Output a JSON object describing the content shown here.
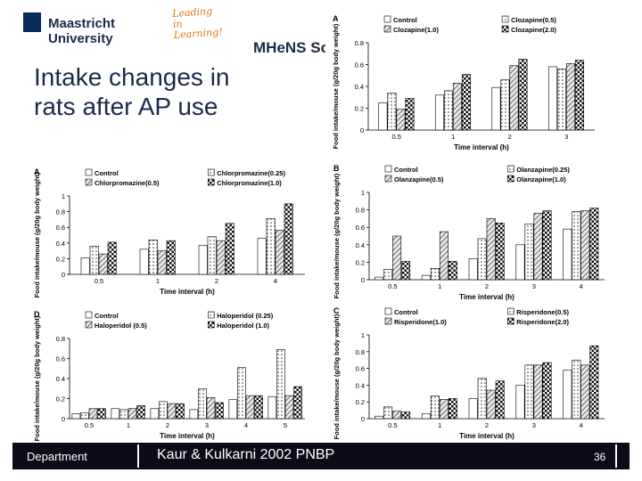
{
  "header": {
    "university": "Maastricht University",
    "tagline_line1": "Leading",
    "tagline_line2": "in Learning!",
    "school": "MHeNS School"
  },
  "title": {
    "line1": "Intake changes in",
    "line2": "rats after AP use"
  },
  "footer": {
    "department": "Department",
    "citation": "Kaur & Kulkarni 2002 PNBP",
    "page": "36"
  },
  "chart_data": [
    {
      "type": "bar",
      "panel_label": "A",
      "ylabel": "Food intake/mouse (g/20g body weight)",
      "xlabel": "Time interval (h)",
      "ylim": [
        0,
        0.8
      ],
      "yticks": [
        0,
        0.2,
        0.4,
        0.6,
        0.8
      ],
      "categories": [
        "0.5",
        "1",
        "2",
        "3"
      ],
      "series": [
        {
          "name": "Control",
          "values": [
            0.25,
            0.32,
            0.39,
            0.58
          ]
        },
        {
          "name": "Clozapine(0.5)",
          "values": [
            0.34,
            0.36,
            0.46,
            0.56
          ]
        },
        {
          "name": "Clozapine(1.0)",
          "values": [
            0.19,
            0.43,
            0.59,
            0.61
          ]
        },
        {
          "name": "Clozapine(2.0)",
          "values": [
            0.29,
            0.51,
            0.65,
            0.64
          ]
        }
      ]
    },
    {
      "type": "bar",
      "panel_label": "A",
      "ylabel": "Food intake/mouse (g/20g body weight)",
      "xlabel": "Time interval (h)",
      "ylim": [
        0,
        1
      ],
      "yticks": [
        0,
        0.2,
        0.4,
        0.6,
        0.8,
        1
      ],
      "categories": [
        "0.5",
        "1",
        "2",
        "4"
      ],
      "series": [
        {
          "name": "Control",
          "values": [
            0.21,
            0.32,
            0.37,
            0.46
          ]
        },
        {
          "name": "Chlorpromazine(0.25)",
          "values": [
            0.36,
            0.44,
            0.48,
            0.71
          ]
        },
        {
          "name": "Chlorpromazine(0.5)",
          "values": [
            0.26,
            0.3,
            0.43,
            0.56
          ]
        },
        {
          "name": "Chlorpromazine(1.0)",
          "values": [
            0.41,
            0.43,
            0.65,
            0.9
          ]
        }
      ]
    },
    {
      "type": "bar",
      "panel_label": "B",
      "ylabel": "Food intake/mouse (g/20g body weight)",
      "xlabel": "Time interval (h)",
      "ylim": [
        0,
        1
      ],
      "yticks": [
        0,
        0.2,
        0.4,
        0.6,
        0.8,
        1
      ],
      "categories": [
        "0.5",
        "1",
        "2",
        "3",
        "4"
      ],
      "series": [
        {
          "name": "Control",
          "values": [
            0.03,
            0.05,
            0.24,
            0.4,
            0.58
          ]
        },
        {
          "name": "Olanzapine(0.25)",
          "values": [
            0.12,
            0.13,
            0.47,
            0.64,
            0.78
          ]
        },
        {
          "name": "Olanzapine(0.5)",
          "values": [
            0.5,
            0.55,
            0.7,
            0.76,
            0.79
          ]
        },
        {
          "name": "Olanzapine(1.0)",
          "values": [
            0.21,
            0.21,
            0.65,
            0.79,
            0.82
          ]
        }
      ]
    },
    {
      "type": "bar",
      "panel_label": "D",
      "ylabel": "Food intake/mouse (g/20g body weight)",
      "xlabel": "Time interval (h)",
      "ylim": [
        0,
        0.8
      ],
      "yticks": [
        0,
        0.2,
        0.4,
        0.6,
        0.8
      ],
      "categories": [
        "0.5",
        "1",
        "2",
        "3",
        "4",
        "5"
      ],
      "series": [
        {
          "name": "Control",
          "values": [
            0.05,
            0.1,
            0.1,
            0.09,
            0.19,
            0.22
          ]
        },
        {
          "name": "Haloperidol (0.25)",
          "values": [
            0.06,
            0.09,
            0.17,
            0.3,
            0.51,
            0.69
          ]
        },
        {
          "name": "Haloperidol (0.5)",
          "values": [
            0.1,
            0.1,
            0.15,
            0.21,
            0.23,
            0.23
          ]
        },
        {
          "name": "Haloperidol (1.0)",
          "values": [
            0.1,
            0.13,
            0.15,
            0.16,
            0.23,
            0.32
          ]
        }
      ]
    },
    {
      "type": "bar",
      "panel_label": "C",
      "ylabel": "Food intake/mouse (g/20g body weight)",
      "xlabel": "Time interval (h)",
      "ylim": [
        0,
        1
      ],
      "yticks": [
        0,
        0.2,
        0.4,
        0.6,
        0.8,
        1
      ],
      "categories": [
        "0.5",
        "1",
        "2",
        "3",
        "4"
      ],
      "series": [
        {
          "name": "Control",
          "values": [
            0.03,
            0.06,
            0.24,
            0.4,
            0.58
          ]
        },
        {
          "name": "Risperidone(0.5)",
          "values": [
            0.14,
            0.27,
            0.48,
            0.64,
            0.7
          ]
        },
        {
          "name": "Risperidone(1.0)",
          "values": [
            0.09,
            0.23,
            0.34,
            0.64,
            0.64
          ]
        },
        {
          "name": "Risperidone(2.0)",
          "values": [
            0.08,
            0.24,
            0.45,
            0.67,
            0.87
          ]
        }
      ]
    }
  ]
}
